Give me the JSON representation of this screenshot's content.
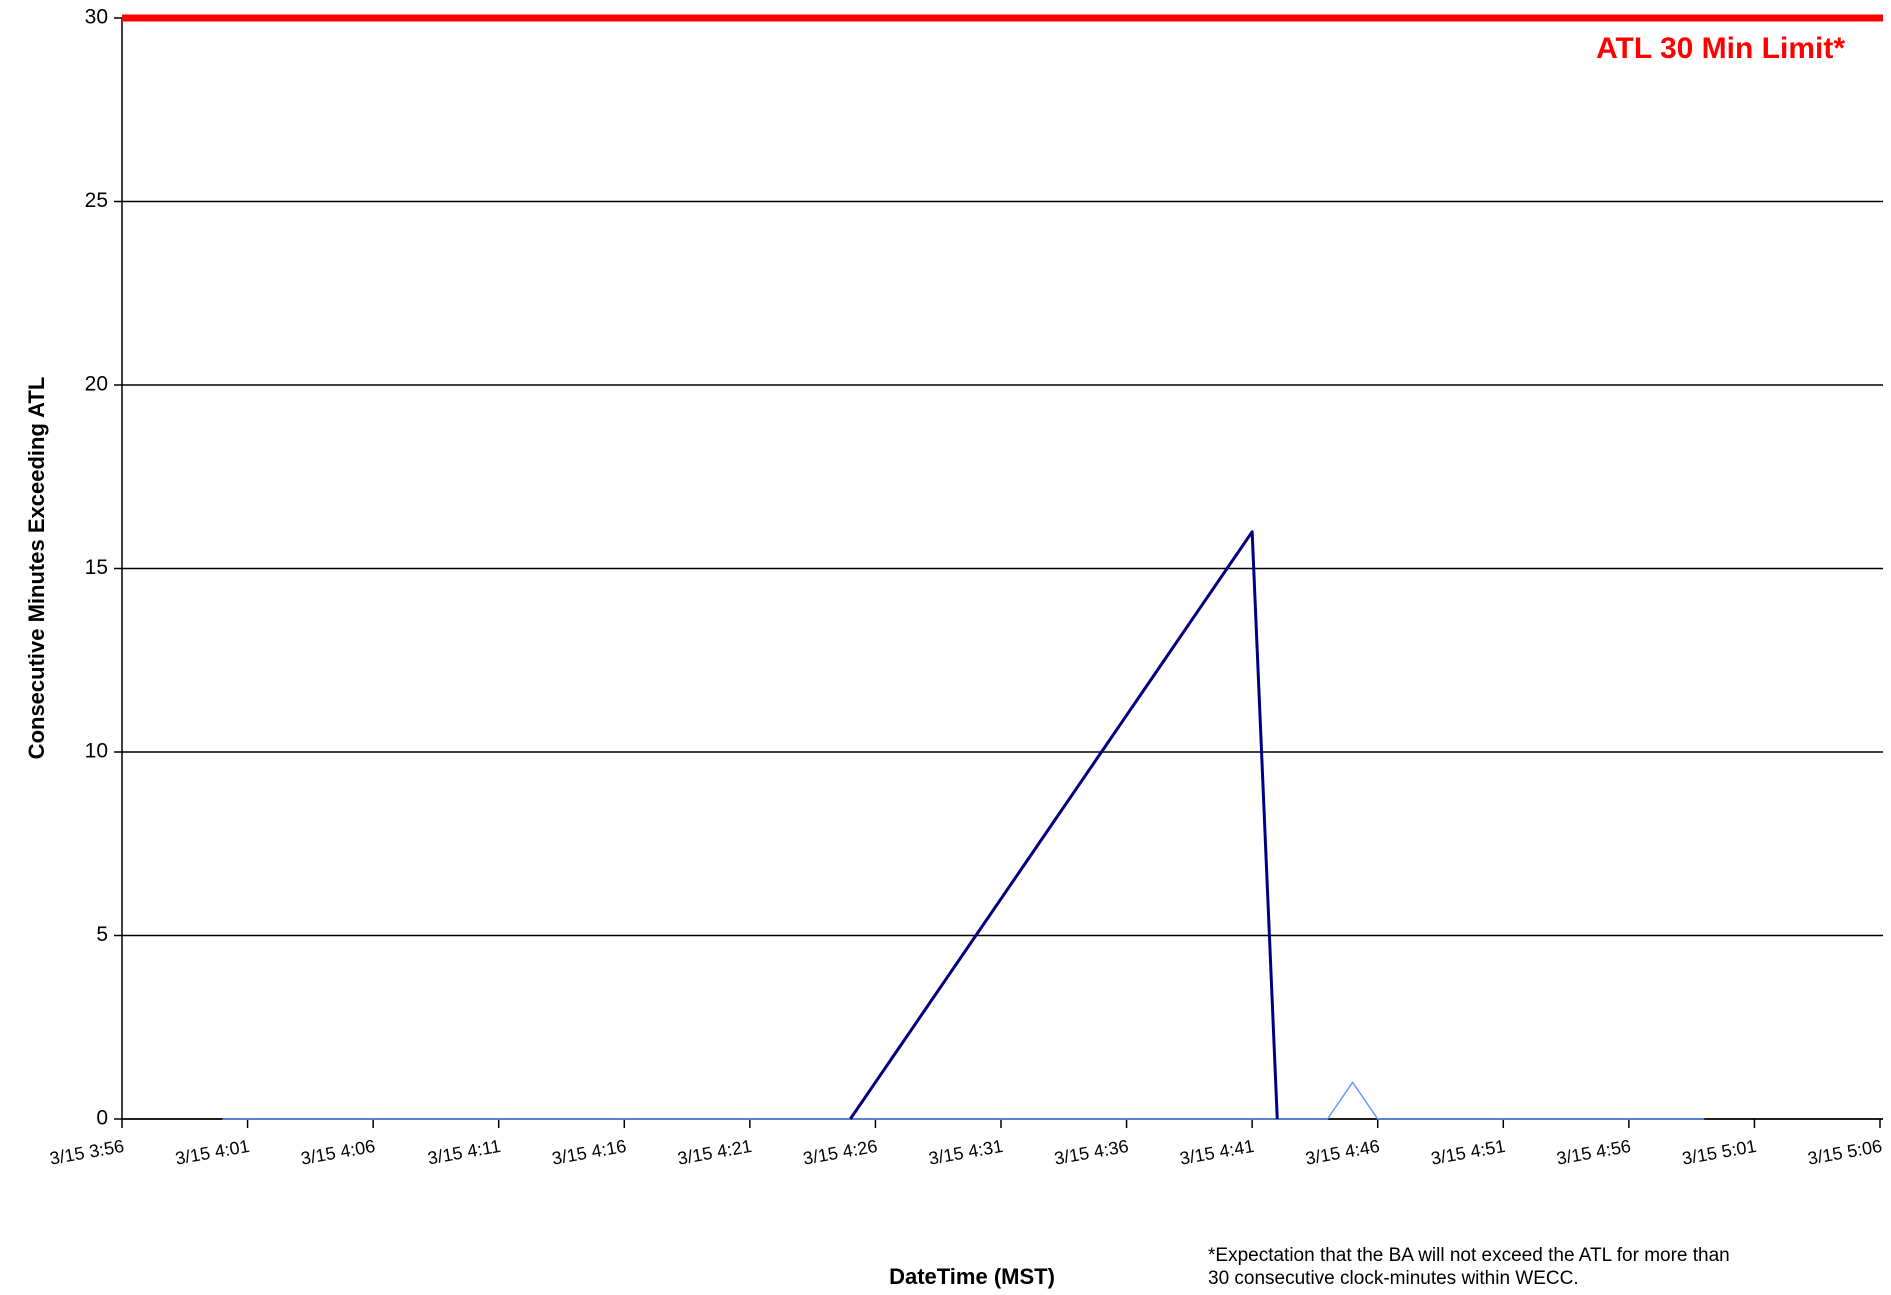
{
  "chart_data": {
    "type": "line",
    "y_label": "Consecutive Minutes Exceeding ATL",
    "x_label": "DateTime (MST)",
    "footnote": [
      "*Expectation that the BA will not exceed the ATL for more than",
      "30 consecutive clock-minutes within WECC."
    ],
    "limit": {
      "value": 30,
      "label": "ATL 30 Min Limit*",
      "color": "#ff0000"
    },
    "xlim": [
      "3/15 3:56",
      "3/15 5:06"
    ],
    "xticks": [
      "3/15 3:56",
      "3/15 4:01",
      "3/15 4:06",
      "3/15 4:11",
      "3/15 4:16",
      "3/15 4:21",
      "3/15 4:26",
      "3/15 4:31",
      "3/15 4:36",
      "3/15 4:41",
      "3/15 4:46",
      "3/15 4:51",
      "3/15 4:56",
      "3/15 5:01",
      "3/15 5:06"
    ],
    "ylim": [
      0,
      30
    ],
    "yticks": [
      0,
      5,
      10,
      15,
      20,
      25,
      30
    ],
    "grid": true,
    "series": [
      {
        "color": "#6699ff",
        "x": [
          "3/15 4:00",
          "3/15 4:44",
          "3/15 4:45",
          "3/15 4:46",
          "3/15 4:59"
        ],
        "values": [
          0,
          0,
          1,
          0,
          0
        ]
      },
      {
        "color": "#000080",
        "x": [
          "3/15 4:25",
          "3/15 4:26",
          "3/15 4:27",
          "3/15 4:28",
          "3/15 4:29",
          "3/15 4:30",
          "3/15 4:31",
          "3/15 4:32",
          "3/15 4:33",
          "3/15 4:34",
          "3/15 4:35",
          "3/15 4:36",
          "3/15 4:37",
          "3/15 4:38",
          "3/15 4:39",
          "3/15 4:40",
          "3/15 4:41",
          "3/15 4:42"
        ],
        "values": [
          0,
          1,
          2,
          3,
          4,
          5,
          6,
          7,
          8,
          9,
          10,
          11,
          12,
          13,
          14,
          15,
          16,
          0
        ]
      }
    ]
  }
}
